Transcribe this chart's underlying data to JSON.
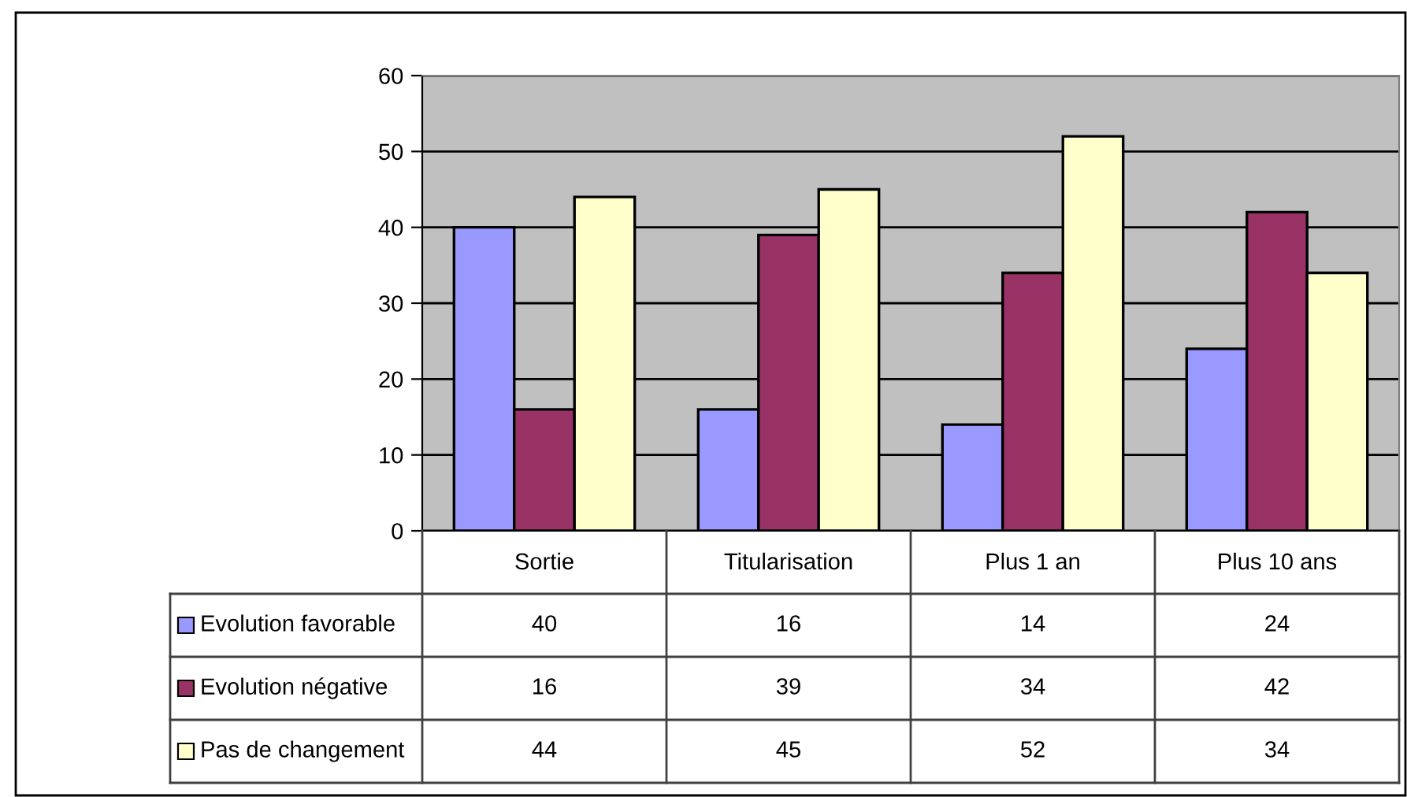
{
  "chart_data": {
    "type": "bar",
    "categories": [
      "Sortie",
      "Titularisation",
      "Plus 1 an",
      "Plus 10 ans"
    ],
    "series": [
      {
        "name": "Evolution favorable",
        "color": "#9999ff",
        "values": [
          40,
          16,
          14,
          24
        ]
      },
      {
        "name": "Evolution négative",
        "color": "#993366",
        "values": [
          16,
          39,
          34,
          42
        ]
      },
      {
        "name": "Pas de changement",
        "color": "#ffffcc",
        "values": [
          44,
          45,
          52,
          34
        ]
      }
    ],
    "ylim": [
      0,
      60
    ],
    "yticks": [
      0,
      10,
      20,
      30,
      40,
      50,
      60
    ],
    "grid": "y",
    "legend": "bottom left",
    "data_labels": true
  }
}
